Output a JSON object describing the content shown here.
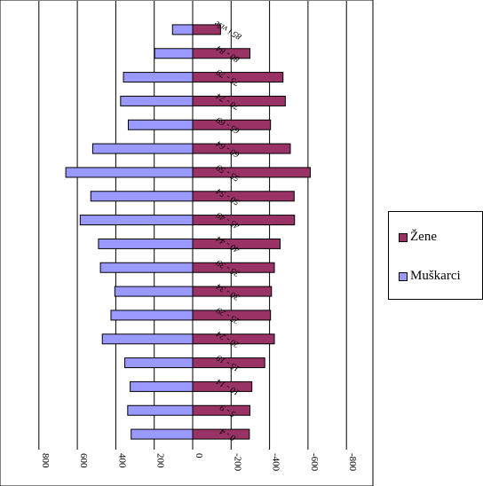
{
  "chart_data": {
    "type": "bar",
    "orientation": "horizontal",
    "categories": [
      "0 - 4",
      "5 - 9",
      "10 - 14",
      "15 - 19",
      "20 - 24",
      "25 - 29",
      "30 - 34",
      "35 - 39",
      "40 - 44",
      "45 - 49",
      "50 - 54",
      "55 - 59",
      "60 - 64",
      "65 - 69",
      "70 - 74",
      "75 - 79",
      "80 - 84",
      "85 i više"
    ],
    "series": [
      {
        "name": "Muškarci",
        "color": "#9999ff",
        "values": [
          320,
          338,
          325,
          353,
          470,
          425,
          405,
          480,
          490,
          585,
          530,
          660,
          520,
          335,
          375,
          360,
          198,
          105
        ]
      },
      {
        "name": "Žene",
        "color": "#993366",
        "values": [
          -295,
          -298,
          -308,
          -375,
          -425,
          -405,
          -410,
          -425,
          -455,
          -530,
          -528,
          -612,
          -508,
          -405,
          -482,
          -470,
          -298,
          -145
        ]
      }
    ],
    "value_axis": {
      "range": [
        800,
        -800
      ],
      "ticks": [
        800,
        600,
        400,
        200,
        0,
        -200,
        -400,
        -600,
        -800
      ]
    },
    "grid": true,
    "legend_position": "right"
  }
}
